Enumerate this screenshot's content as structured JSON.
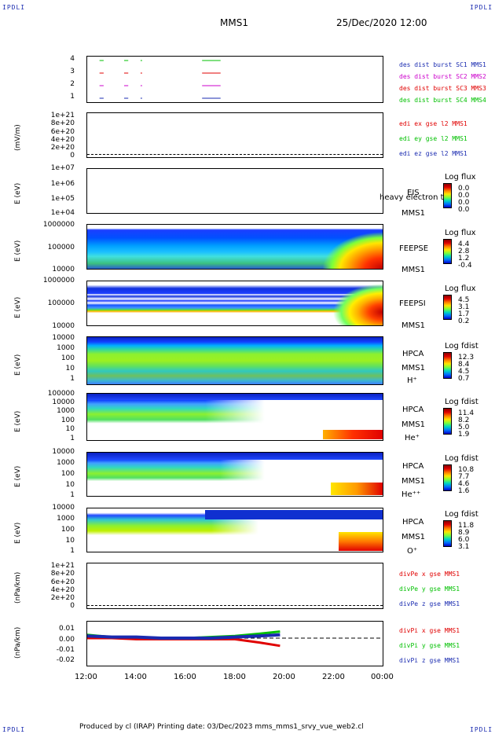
{
  "corner_left": "IPDLI",
  "corner_right": "IPDLI",
  "corner_bl": "IPDLI",
  "corner_br": "IPDLI",
  "header": {
    "spacecraft": "MMS1",
    "date": "25/Dec/2020 12:00"
  },
  "footer": "Produced by cl (IRAP)   Printing date: 03/Dec/2023   mms_mms1_srvy_vue_web2.cl",
  "time_axis": [
    "12:00",
    "14:00",
    "16:00",
    "18:00",
    "20:00",
    "22:00",
    "00:00"
  ],
  "panels": {
    "p1": {
      "ticks": [
        "4",
        "3",
        "2",
        "1"
      ],
      "legend": [
        "des dist burst SC1 MMS1",
        "des dist burst SC2 MMS2",
        "des dist burst SC3 MMS3",
        "des dist burst SC4 MMS4"
      ],
      "legend_colors": [
        "#1a2bb0",
        "#cc00cc",
        "#e00000",
        "#00c000"
      ]
    },
    "p2": {
      "ylabel": "(mV/m)",
      "ticks": [
        "1e+21",
        "8e+20",
        "6e+20",
        "4e+20",
        "2e+20",
        "0"
      ],
      "legend": [
        "edi ex gse l2 MMS1",
        "edi ey gse l2 MMS1",
        "edi ez gse l2 MMS1"
      ],
      "legend_colors": [
        "#e00000",
        "#00c000",
        "#1a2bb0"
      ]
    },
    "p3": {
      "ylabel": "E (eV)",
      "ticks": [
        "1e+07",
        "1e+06",
        "1e+05",
        "1e+04"
      ],
      "lab1": "EIS",
      "lab2": "MMS1",
      "overlay": "heavy electron to",
      "cb_title": "Log flux",
      "cb_values": [
        "0.0",
        "0.0",
        "0.0",
        "0.0"
      ]
    },
    "p4": {
      "ylabel": "E (eV)",
      "ticks": [
        "1000000",
        "100000",
        "10000"
      ],
      "lab1": "FEEPSE",
      "lab2": "MMS1",
      "cb_title": "Log flux",
      "cb_values": [
        "4.4",
        "2.8",
        "1.2",
        "-0.4"
      ]
    },
    "p5": {
      "ylabel": "E (eV)",
      "ticks": [
        "1000000",
        "100000",
        "10000"
      ],
      "lab1": "FEEPSI",
      "lab2": "MMS1",
      "cb_title": "Log flux",
      "cb_values": [
        "4.5",
        "3.1",
        "1.7",
        "0.2"
      ]
    },
    "p6": {
      "ylabel": "E (eV)",
      "ticks": [
        "10000",
        "1000",
        "100",
        "10",
        "1"
      ],
      "lab1": "HPCA",
      "lab2": "MMS1",
      "lab3": "H⁺",
      "cb_title": "Log fdist",
      "cb_values": [
        "12.3",
        "8.4",
        "4.5",
        "0.7"
      ]
    },
    "p7": {
      "ylabel": "E (eV)",
      "ticks": [
        "100000",
        "10000",
        "1000",
        "100",
        "10",
        "1"
      ],
      "lab1": "HPCA",
      "lab2": "MMS1",
      "lab3": "He⁺",
      "cb_title": "Log fdist",
      "cb_values": [
        "11.4",
        "8.2",
        "5.0",
        "1.9"
      ]
    },
    "p8": {
      "ylabel": "E (eV)",
      "ticks": [
        "10000",
        "1000",
        "100",
        "10",
        "1"
      ],
      "lab1": "HPCA",
      "lab2": "MMS1",
      "lab3": "He⁺⁺",
      "cb_title": "Log fdist",
      "cb_values": [
        "10.8",
        "7.7",
        "4.6",
        "1.6"
      ]
    },
    "p9": {
      "ylabel": "E (eV)",
      "ticks": [
        "10000",
        "1000",
        "100",
        "10",
        "1"
      ],
      "lab1": "HPCA",
      "lab2": "MMS1",
      "lab3": "O⁺",
      "cb_title": "Log fdist",
      "cb_values": [
        "11.8",
        "8.9",
        "6.0",
        "3.1"
      ]
    },
    "p10": {
      "ylabel": "(nPa/km)",
      "ticks": [
        "1e+21",
        "8e+20",
        "6e+20",
        "4e+20",
        "2e+20",
        "0"
      ],
      "legend": [
        "divPe x gse MMS1",
        "divPe y gse MMS1",
        "divPe z gse MMS1"
      ],
      "legend_colors": [
        "#e00000",
        "#00c000",
        "#1a2bb0"
      ]
    },
    "p11": {
      "ylabel": "(nPa/km)",
      "ticks": [
        "0.01",
        "0.00",
        "-0.01",
        "-0.02"
      ],
      "legend": [
        "divPi x gse MMS1",
        "divPi y gse MMS1",
        "divPi z gse MMS1"
      ],
      "legend_colors": [
        "#e00000",
        "#00c000",
        "#1a2bb0"
      ]
    }
  },
  "chart_data": {
    "type": "line",
    "x": [
      "12:00",
      "14:00",
      "16:00",
      "18:00",
      "20:00",
      "22:00",
      "00:00"
    ],
    "xlim": [
      "12:00",
      "00:00"
    ],
    "burst_intervals": [
      {
        "sc": 4,
        "start": "12:30",
        "end": "12:40"
      },
      {
        "sc": 4,
        "start": "13:30",
        "end": "13:40"
      },
      {
        "sc": 4,
        "start": "14:10",
        "end": "14:12"
      },
      {
        "sc": 4,
        "start": "16:40",
        "end": "17:25"
      },
      {
        "sc": 3,
        "start": "12:30",
        "end": "12:40"
      },
      {
        "sc": 3,
        "start": "13:30",
        "end": "13:40"
      },
      {
        "sc": 3,
        "start": "14:10",
        "end": "14:12"
      },
      {
        "sc": 3,
        "start": "16:40",
        "end": "17:25"
      },
      {
        "sc": 2,
        "start": "12:30",
        "end": "12:40"
      },
      {
        "sc": 2,
        "start": "13:30",
        "end": "13:40"
      },
      {
        "sc": 2,
        "start": "14:10",
        "end": "14:12"
      },
      {
        "sc": 2,
        "start": "16:40",
        "end": "17:25"
      },
      {
        "sc": 1,
        "start": "12:30",
        "end": "12:40"
      },
      {
        "sc": 1,
        "start": "13:30",
        "end": "13:40"
      },
      {
        "sc": 1,
        "start": "14:10",
        "end": "14:12"
      },
      {
        "sc": 1,
        "start": "16:40",
        "end": "17:25"
      }
    ],
    "divPi": {
      "ylim": [
        -0.025,
        0.015
      ],
      "series": [
        {
          "name": "divPi x gse MMS1",
          "x": [
            "12:00",
            "13:00",
            "14:00",
            "15:00",
            "16:00",
            "17:00",
            "18:00",
            "19:00",
            "19:50"
          ],
          "values": [
            0.0,
            0.0,
            -0.001,
            -0.001,
            -0.001,
            -0.001,
            -0.001,
            -0.004,
            -0.007
          ]
        },
        {
          "name": "divPi y gse MMS1",
          "x": [
            "12:00",
            "13:00",
            "14:00",
            "15:00",
            "16:00",
            "17:00",
            "18:00",
            "19:00",
            "19:50"
          ],
          "values": [
            0.003,
            0.001,
            0.001,
            0.0,
            0.0,
            0.001,
            0.002,
            0.004,
            0.006
          ]
        },
        {
          "name": "divPi z gse MMS1",
          "x": [
            "12:00",
            "13:00",
            "14:00",
            "15:00",
            "16:00",
            "17:00",
            "18:00",
            "19:00",
            "19:50"
          ],
          "values": [
            0.002,
            0.001,
            0.001,
            0.0,
            0.0,
            0.0,
            0.001,
            0.002,
            0.003
          ]
        }
      ]
    }
  }
}
